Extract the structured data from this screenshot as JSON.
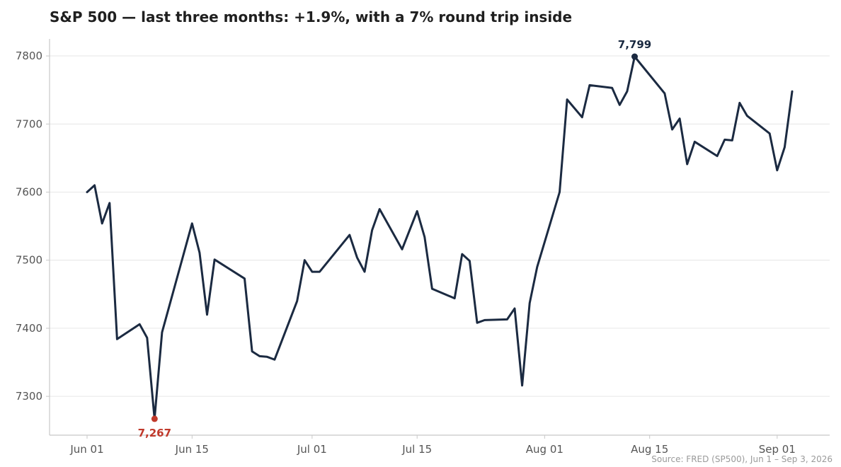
{
  "chart_data": {
    "type": "line",
    "title": "S&P 500 — last three months: +1.9%, with a 7% round trip inside",
    "source": "Source: FRED (SP500), Jun 1 – Sep 3, 2026",
    "xlabel": "",
    "ylabel": "",
    "ylim": [
      7243,
      7825
    ],
    "xlim": [
      "2026-05-27",
      "2026-09-08"
    ],
    "y_ticks": [
      7300,
      7400,
      7500,
      7600,
      7700,
      7800
    ],
    "x_ticks": [
      {
        "date": "2026-06-01",
        "label": "Jun 01"
      },
      {
        "date": "2026-06-15",
        "label": "Jun 15"
      },
      {
        "date": "2026-07-01",
        "label": "Jul 01"
      },
      {
        "date": "2026-07-15",
        "label": "Jul 15"
      },
      {
        "date": "2026-08-01",
        "label": "Aug 01"
      },
      {
        "date": "2026-08-15",
        "label": "Aug 15"
      },
      {
        "date": "2026-09-01",
        "label": "Sep 01"
      }
    ],
    "grid": true,
    "colors": {
      "line": "#1b2a41",
      "low": "#c0392b",
      "high": "#1b2a41"
    },
    "series": [
      {
        "x": [
          "2026-06-01",
          "2026-06-02",
          "2026-06-03",
          "2026-06-04",
          "2026-06-05",
          "2026-06-08",
          "2026-06-09",
          "2026-06-10",
          "2026-06-11",
          "2026-06-15",
          "2026-06-16",
          "2026-06-17",
          "2026-06-18",
          "2026-06-22",
          "2026-06-23",
          "2026-06-24",
          "2026-06-25",
          "2026-06-26",
          "2026-06-29",
          "2026-06-30",
          "2026-07-01",
          "2026-07-02",
          "2026-07-06",
          "2026-07-07",
          "2026-07-08",
          "2026-07-09",
          "2026-07-10",
          "2026-07-13",
          "2026-07-15",
          "2026-07-16",
          "2026-07-17",
          "2026-07-20",
          "2026-07-21",
          "2026-07-22",
          "2026-07-23",
          "2026-07-24",
          "2026-07-27",
          "2026-07-28",
          "2026-07-29",
          "2026-07-30",
          "2026-07-31",
          "2026-08-03",
          "2026-08-04",
          "2026-08-06",
          "2026-08-07",
          "2026-08-10",
          "2026-08-11",
          "2026-08-12",
          "2026-08-13",
          "2026-08-17",
          "2026-08-18",
          "2026-08-19",
          "2026-08-20",
          "2026-08-21",
          "2026-08-24",
          "2026-08-25",
          "2026-08-26",
          "2026-08-27",
          "2026-08-28",
          "2026-08-31",
          "2026-09-01",
          "2026-09-02",
          "2026-09-03"
        ],
        "values": [
          7600,
          7610,
          7554,
          7584,
          7384,
          7406,
          7386,
          7267,
          7394,
          7554,
          7511,
          7420,
          7501,
          7473,
          7366,
          7359,
          7358,
          7354,
          7440,
          7500,
          7483,
          7483,
          7537,
          7504,
          7483,
          7544,
          7575,
          7516,
          7572,
          7534,
          7458,
          7444,
          7509,
          7499,
          7408,
          7412,
          7413,
          7429,
          7316,
          7437,
          7490,
          7600,
          7736,
          7710,
          7757,
          7753,
          7728,
          7748,
          7799,
          7745,
          7692,
          7708,
          7641,
          7674,
          7653,
          7677,
          7676,
          7731,
          7712,
          7686,
          7632,
          7666,
          7748
        ]
      }
    ],
    "annotations": [
      {
        "date": "2026-06-10",
        "value": 7267,
        "label": "7,267",
        "kind": "low"
      },
      {
        "date": "2026-08-13",
        "value": 7799,
        "label": "7,799",
        "kind": "high"
      }
    ]
  }
}
